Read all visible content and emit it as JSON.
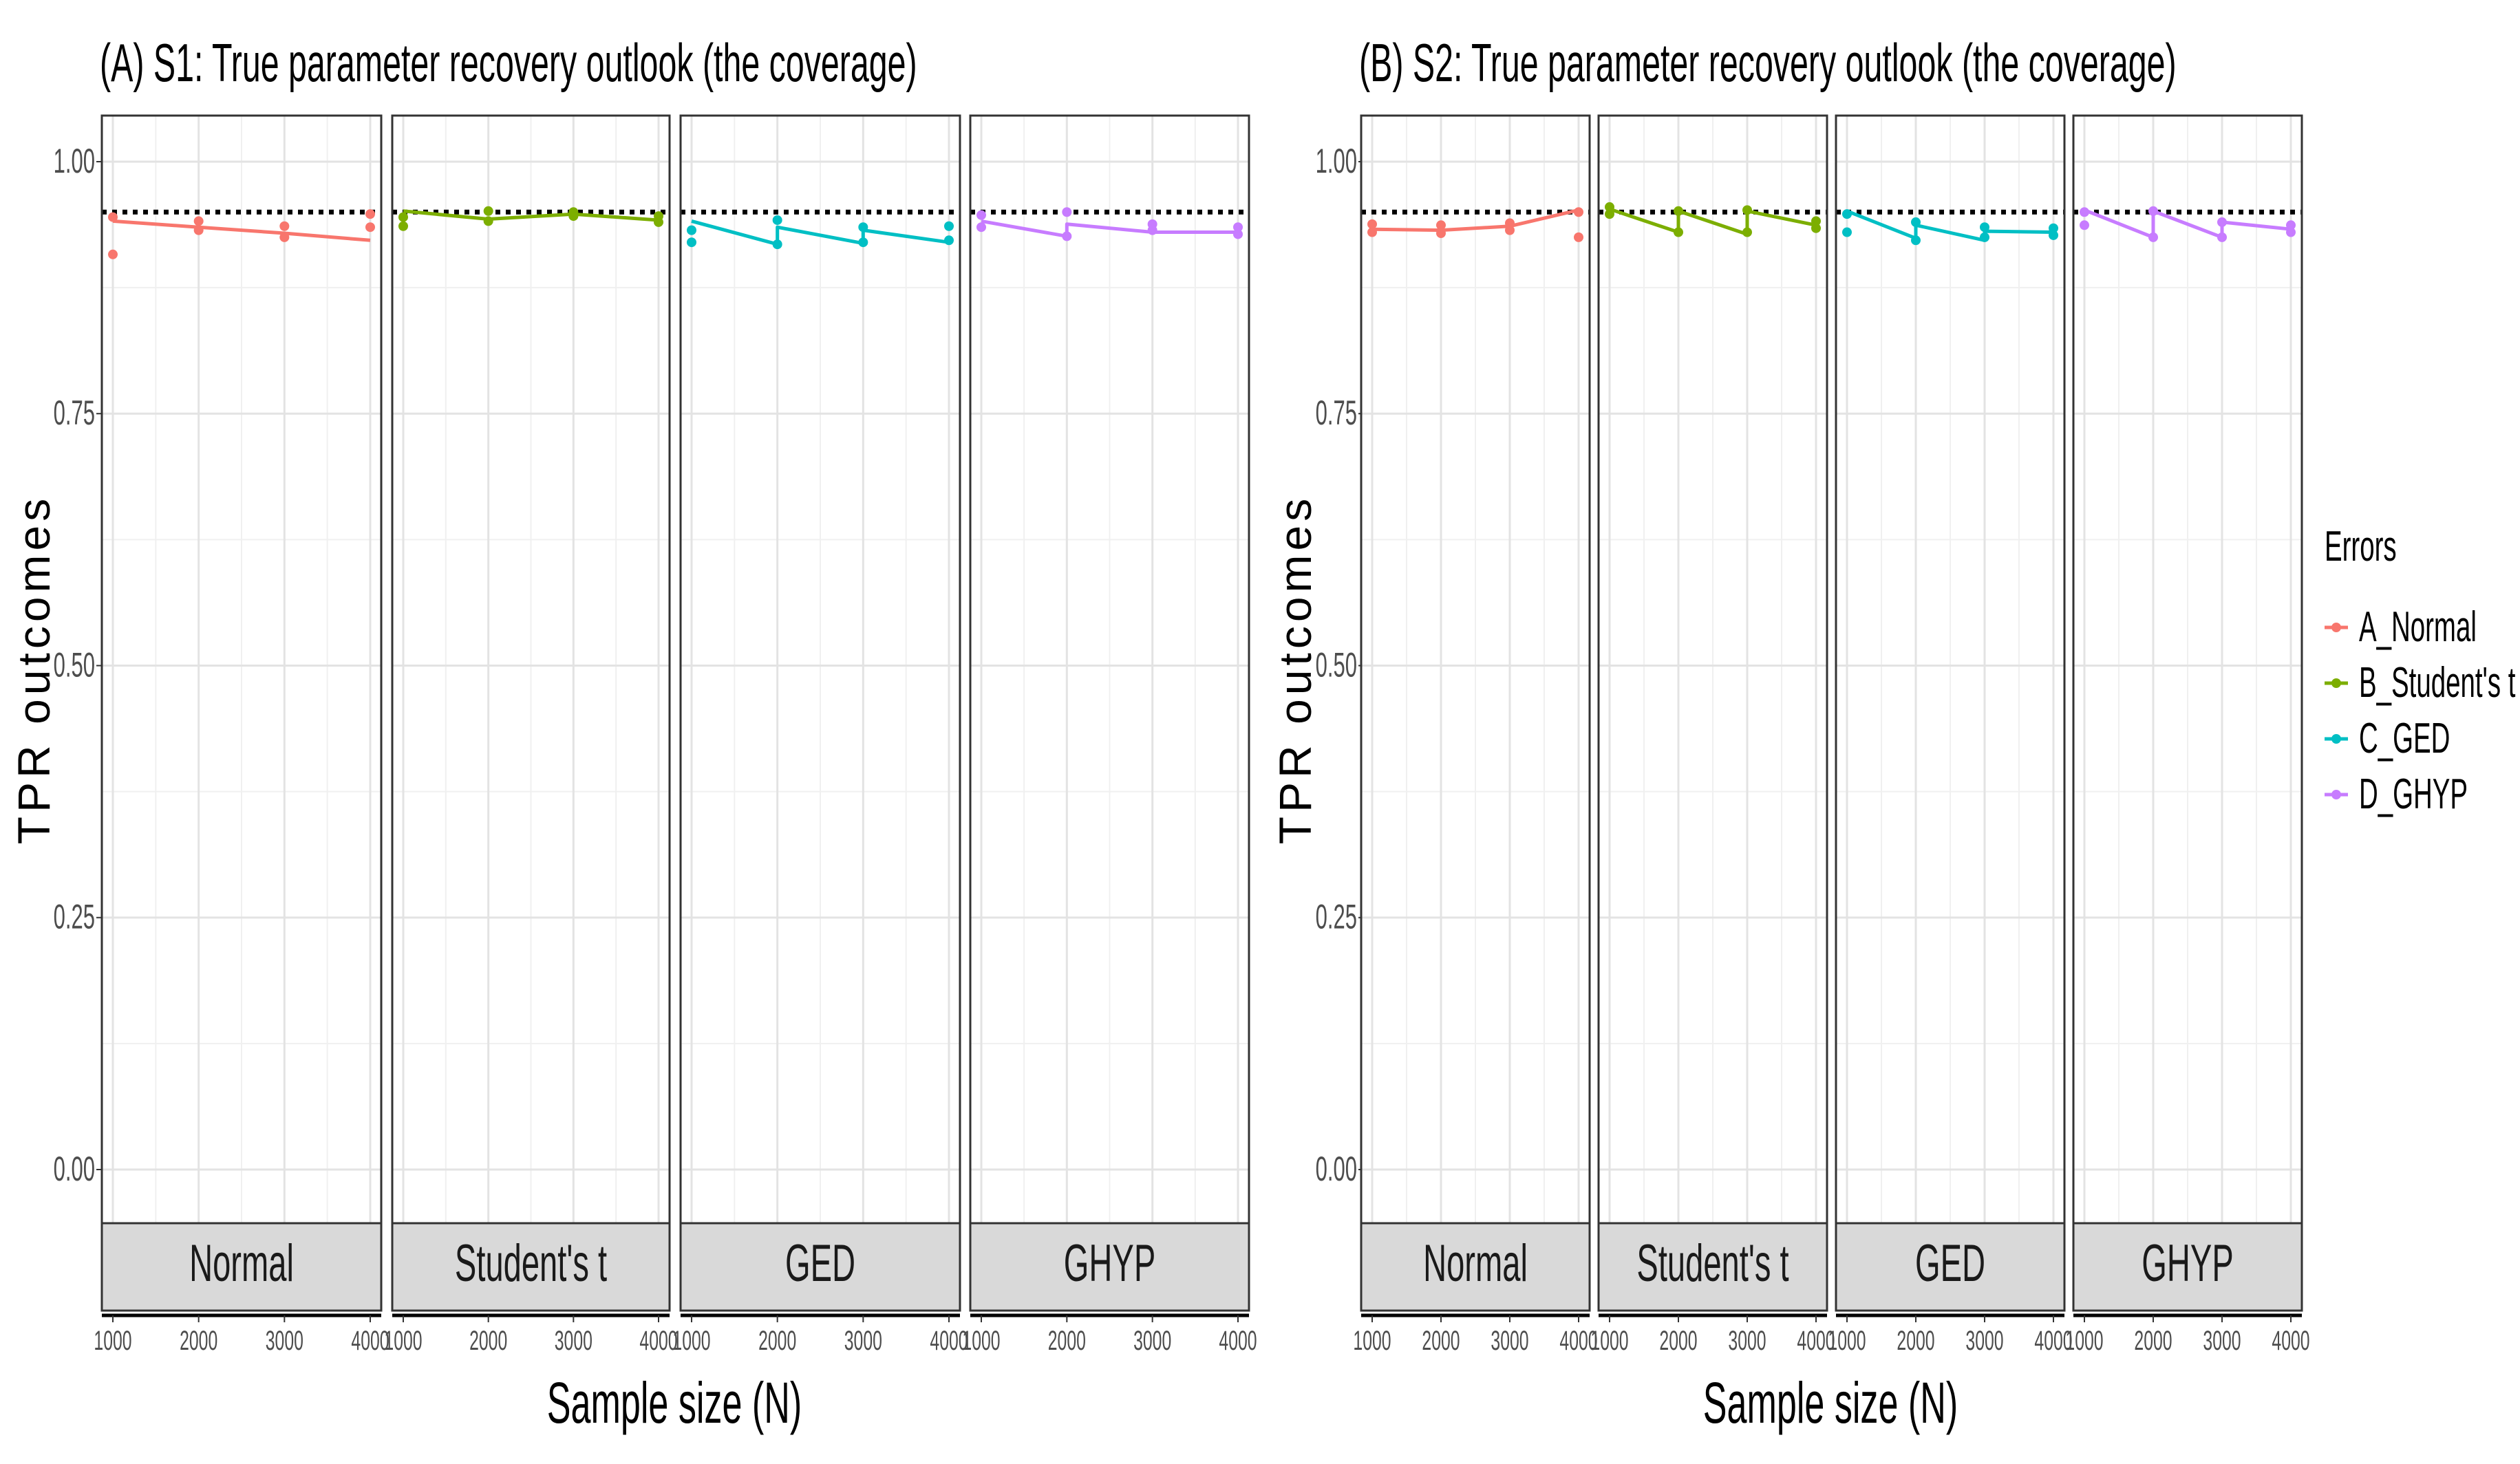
{
  "chart_data": [
    {
      "type": "line",
      "title": "(A) S1: True parameter recovery outlook (the coverage)",
      "ylabel": "TPR outcomes",
      "xlabel": "Sample size (N)",
      "ylim": [
        0,
        1
      ],
      "yticks": [
        0.0,
        0.25,
        0.5,
        0.75,
        1.0
      ],
      "ytick_labels": [
        "0.00",
        "0.25",
        "0.50",
        "0.75",
        "1.00"
      ],
      "xticks": [
        1000,
        2000,
        3000,
        4000
      ],
      "xtick_labels": [
        "1000",
        "2000",
        "3000",
        "4000"
      ],
      "reference_line": 0.95,
      "grid": true,
      "facets": [
        {
          "label": "Normal",
          "series": "A_Normal",
          "line": [
            {
              "x": 1000,
              "y": 0.941
            },
            {
              "x": 2000,
              "y": 0.935
            },
            {
              "x": 3000,
              "y": 0.929
            },
            {
              "x": 4000,
              "y": 0.922
            }
          ],
          "points": [
            {
              "x": 1000,
              "y": 0.908
            },
            {
              "x": 1000,
              "y": 0.945
            },
            {
              "x": 2000,
              "y": 0.932
            },
            {
              "x": 2000,
              "y": 0.941
            },
            {
              "x": 3000,
              "y": 0.925
            },
            {
              "x": 3000,
              "y": 0.936
            },
            {
              "x": 4000,
              "y": 0.935
            },
            {
              "x": 4000,
              "y": 0.948
            }
          ]
        },
        {
          "label": "Student's t",
          "series": "B_Student's t",
          "line": [
            {
              "x": 1000,
              "y": 0.951
            },
            {
              "x": 2000,
              "y": 0.943
            },
            {
              "x": 3000,
              "y": 0.948
            },
            {
              "x": 4000,
              "y": 0.942
            }
          ],
          "points": [
            {
              "x": 1000,
              "y": 0.936
            },
            {
              "x": 1000,
              "y": 0.945
            },
            {
              "x": 2000,
              "y": 0.941
            },
            {
              "x": 2000,
              "y": 0.951
            },
            {
              "x": 3000,
              "y": 0.946
            },
            {
              "x": 3000,
              "y": 0.95
            },
            {
              "x": 4000,
              "y": 0.94
            },
            {
              "x": 4000,
              "y": 0.946
            }
          ]
        },
        {
          "label": "GED",
          "series": "C_GED",
          "line": [
            {
              "x": 1000,
              "y": 0.941
            },
            {
              "x": 2000,
              "y": 0.918
            },
            {
              "x": 2000,
              "y": 0.935
            },
            {
              "x": 3000,
              "y": 0.919
            },
            {
              "x": 3000,
              "y": 0.932
            },
            {
              "x": 4000,
              "y": 0.92
            }
          ],
          "points": [
            {
              "x": 1000,
              "y": 0.92
            },
            {
              "x": 1000,
              "y": 0.932
            },
            {
              "x": 2000,
              "y": 0.918
            },
            {
              "x": 2000,
              "y": 0.942
            },
            {
              "x": 3000,
              "y": 0.92
            },
            {
              "x": 3000,
              "y": 0.935
            },
            {
              "x": 4000,
              "y": 0.922
            },
            {
              "x": 4000,
              "y": 0.936
            }
          ]
        },
        {
          "label": "GHYP",
          "series": "D_GHYP",
          "line": [
            {
              "x": 1000,
              "y": 0.941
            },
            {
              "x": 2000,
              "y": 0.926
            },
            {
              "x": 2000,
              "y": 0.938
            },
            {
              "x": 3000,
              "y": 0.93
            },
            {
              "x": 4000,
              "y": 0.93
            }
          ],
          "points": [
            {
              "x": 1000,
              "y": 0.935
            },
            {
              "x": 1000,
              "y": 0.947
            },
            {
              "x": 2000,
              "y": 0.926
            },
            {
              "x": 2000,
              "y": 0.95
            },
            {
              "x": 3000,
              "y": 0.932
            },
            {
              "x": 3000,
              "y": 0.938
            },
            {
              "x": 4000,
              "y": 0.928
            },
            {
              "x": 4000,
              "y": 0.935
            }
          ]
        }
      ]
    },
    {
      "type": "line",
      "title": "(B) S2: True parameter recovery outlook (the coverage)",
      "ylabel": "TPR outcomes",
      "xlabel": "Sample size (N)",
      "ylim": [
        0,
        1
      ],
      "yticks": [
        0.0,
        0.25,
        0.5,
        0.75,
        1.0
      ],
      "ytick_labels": [
        "0.00",
        "0.25",
        "0.50",
        "0.75",
        "1.00"
      ],
      "xticks": [
        1000,
        2000,
        3000,
        4000
      ],
      "xtick_labels": [
        "1000",
        "2000",
        "3000",
        "4000"
      ],
      "reference_line": 0.95,
      "grid": true,
      "facets": [
        {
          "label": "Normal",
          "series": "A_Normal",
          "line": [
            {
              "x": 1000,
              "y": 0.933
            },
            {
              "x": 2000,
              "y": 0.932
            },
            {
              "x": 3000,
              "y": 0.936
            },
            {
              "x": 4000,
              "y": 0.952
            }
          ],
          "points": [
            {
              "x": 1000,
              "y": 0.93
            },
            {
              "x": 1000,
              "y": 0.938
            },
            {
              "x": 2000,
              "y": 0.929
            },
            {
              "x": 2000,
              "y": 0.937
            },
            {
              "x": 3000,
              "y": 0.932
            },
            {
              "x": 3000,
              "y": 0.939
            },
            {
              "x": 4000,
              "y": 0.925
            },
            {
              "x": 4000,
              "y": 0.95
            }
          ]
        },
        {
          "label": "Student's t",
          "series": "B_Student's t",
          "line": [
            {
              "x": 1000,
              "y": 0.953
            },
            {
              "x": 2000,
              "y": 0.93
            },
            {
              "x": 2000,
              "y": 0.951
            },
            {
              "x": 3000,
              "y": 0.928
            },
            {
              "x": 3000,
              "y": 0.951
            },
            {
              "x": 4000,
              "y": 0.937
            }
          ],
          "points": [
            {
              "x": 1000,
              "y": 0.948
            },
            {
              "x": 1000,
              "y": 0.955
            },
            {
              "x": 2000,
              "y": 0.93
            },
            {
              "x": 2000,
              "y": 0.951
            },
            {
              "x": 3000,
              "y": 0.93
            },
            {
              "x": 3000,
              "y": 0.952
            },
            {
              "x": 4000,
              "y": 0.934
            },
            {
              "x": 4000,
              "y": 0.941
            }
          ]
        },
        {
          "label": "GED",
          "series": "C_GED",
          "line": [
            {
              "x": 1000,
              "y": 0.951
            },
            {
              "x": 2000,
              "y": 0.924
            },
            {
              "x": 2000,
              "y": 0.937
            },
            {
              "x": 3000,
              "y": 0.922
            },
            {
              "x": 3000,
              "y": 0.931
            },
            {
              "x": 4000,
              "y": 0.93
            }
          ],
          "points": [
            {
              "x": 1000,
              "y": 0.93
            },
            {
              "x": 1000,
              "y": 0.948
            },
            {
              "x": 2000,
              "y": 0.922
            },
            {
              "x": 2000,
              "y": 0.94
            },
            {
              "x": 3000,
              "y": 0.925
            },
            {
              "x": 3000,
              "y": 0.935
            },
            {
              "x": 4000,
              "y": 0.927
            },
            {
              "x": 4000,
              "y": 0.934
            }
          ]
        },
        {
          "label": "GHYP",
          "series": "D_GHYP",
          "line": [
            {
              "x": 1000,
              "y": 0.952
            },
            {
              "x": 2000,
              "y": 0.925
            },
            {
              "x": 2000,
              "y": 0.951
            },
            {
              "x": 3000,
              "y": 0.925
            },
            {
              "x": 3000,
              "y": 0.94
            },
            {
              "x": 4000,
              "y": 0.933
            }
          ],
          "points": [
            {
              "x": 1000,
              "y": 0.937
            },
            {
              "x": 1000,
              "y": 0.95
            },
            {
              "x": 2000,
              "y": 0.925
            },
            {
              "x": 2000,
              "y": 0.951
            },
            {
              "x": 3000,
              "y": 0.925
            },
            {
              "x": 3000,
              "y": 0.94
            },
            {
              "x": 4000,
              "y": 0.93
            },
            {
              "x": 4000,
              "y": 0.937
            }
          ]
        }
      ]
    }
  ],
  "legend": {
    "title": "Errors",
    "position": "right",
    "items": [
      {
        "label": "A_Normal",
        "color": "#F8766D"
      },
      {
        "label": "B_Student's t",
        "color": "#7CAE00"
      },
      {
        "label": "C_GED",
        "color": "#00BFC4"
      },
      {
        "label": "D_GHYP",
        "color": "#C77CFF"
      }
    ]
  }
}
